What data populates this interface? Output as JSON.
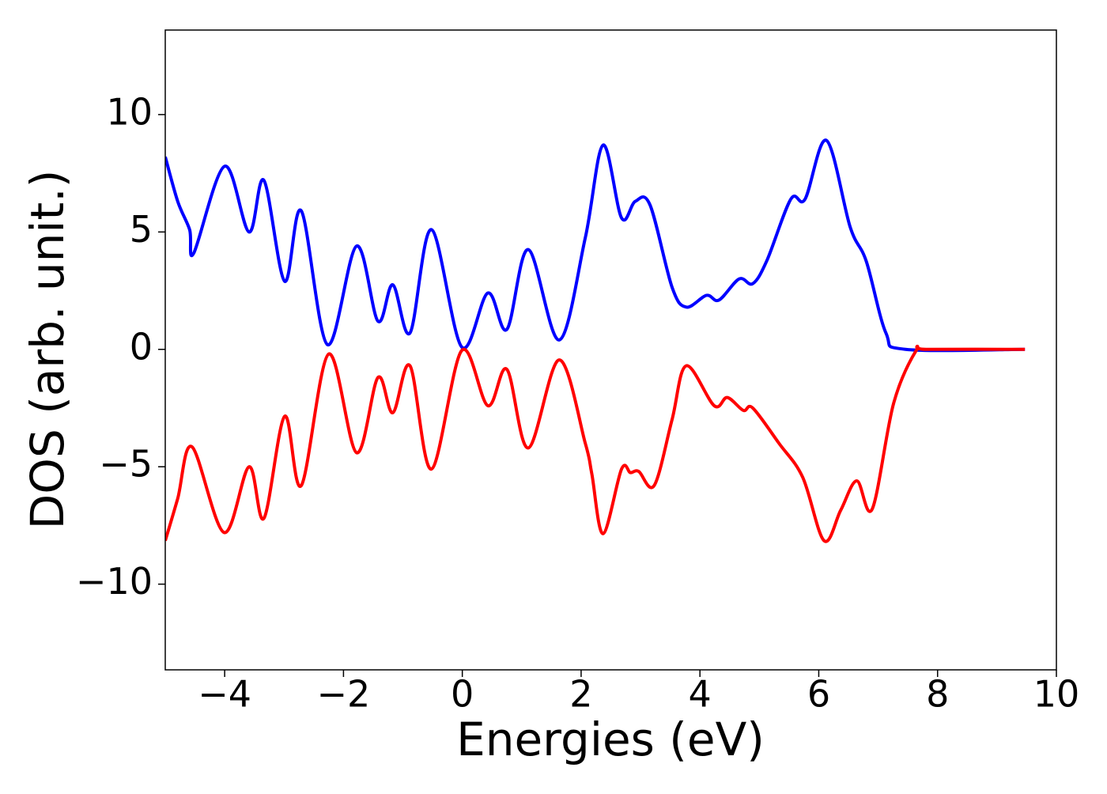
{
  "chart_data": {
    "type": "line",
    "xlabel": "Energies (eV)",
    "ylabel": "DOS (arb. unit.)",
    "xlim": [
      -5,
      10
    ],
    "ylim": [
      -13.65,
      13.6
    ],
    "xticks": [
      {
        "value": -4,
        "label": "−4"
      },
      {
        "value": -2,
        "label": "−2"
      },
      0,
      2,
      4,
      6,
      8,
      10
    ],
    "yticks": [
      {
        "value": -10,
        "label": "−10"
      },
      {
        "value": -5,
        "label": "−5"
      },
      0,
      5,
      10
    ],
    "grid": false,
    "series": [
      {
        "color": "#0000ff",
        "x": [
          -5,
          -4.79,
          -4.59,
          -4.52,
          -4,
          -3.59,
          -3.34,
          -2.99,
          -2.71,
          -2.27,
          -1.78,
          -1.42,
          -1.17,
          -0.88,
          -0.52,
          -0.01,
          0.43,
          0.75,
          1.11,
          1.63,
          2.07,
          2.37,
          2.68,
          2.91,
          3.16,
          3.53,
          3.77,
          4.11,
          4.32,
          4.66,
          4.89,
          5.13,
          5.53,
          5.77,
          6.13,
          6.53,
          6.8,
          7.13,
          7.46,
          9.47
        ],
        "values": [
          8.2,
          6.3,
          5.1,
          4.1,
          7.8,
          5.0,
          7.2,
          2.9,
          5.9,
          0.2,
          4.4,
          1.2,
          2.75,
          0.7,
          5.1,
          0.1,
          2.4,
          0.85,
          4.25,
          0.4,
          4.75,
          8.7,
          5.6,
          6.3,
          6.15,
          2.65,
          1.8,
          2.3,
          2.1,
          3.0,
          2.8,
          3.8,
          6.4,
          6.4,
          8.9,
          5.2,
          3.75,
          0.7,
          0,
          0
        ]
      },
      {
        "color": "#ff0000",
        "x": [
          -5,
          -4.79,
          -4.55,
          -4.01,
          -3.59,
          -3.34,
          -2.99,
          -2.71,
          -2.25,
          -1.78,
          -1.42,
          -1.17,
          -0.88,
          -0.52,
          -0.01,
          0.43,
          0.75,
          1.11,
          1.63,
          2.07,
          2.18,
          2.37,
          2.68,
          2.83,
          2.97,
          3.23,
          3.53,
          3.77,
          4.24,
          4.46,
          4.73,
          4.89,
          5.33,
          5.73,
          6.09,
          6.37,
          6.64,
          6.9,
          7.26,
          7.64,
          7.82,
          9.47
        ],
        "values": [
          -8.15,
          -6.35,
          -4.15,
          -7.8,
          -5.0,
          -7.2,
          -2.85,
          -5.8,
          -0.2,
          -4.4,
          -1.2,
          -2.7,
          -0.7,
          -5.1,
          -0.05,
          -2.4,
          -0.85,
          -4.2,
          -0.45,
          -4.0,
          -5.3,
          -7.85,
          -5.1,
          -5.25,
          -5.2,
          -5.8,
          -3.0,
          -0.7,
          -2.4,
          -2.05,
          -2.6,
          -2.5,
          -4.0,
          -5.45,
          -8.15,
          -6.85,
          -5.6,
          -6.8,
          -2.3,
          -0.05,
          0,
          0
        ]
      }
    ]
  }
}
